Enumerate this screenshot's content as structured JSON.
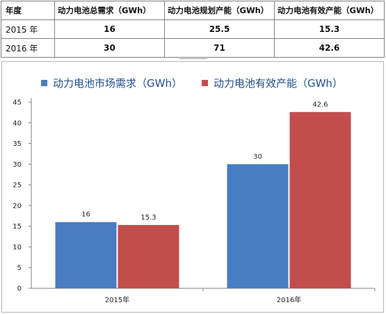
{
  "table": {
    "headers": [
      "年度",
      "动力电池总需求（GWh）",
      "动力电池规划产能（GWh）",
      "动力电池有效产能（GWh）"
    ],
    "rows": [
      [
        "2015 年",
        "16",
        "25.5",
        "15.3"
      ],
      [
        "2016 年",
        "30",
        "71",
        "42.6"
      ]
    ]
  },
  "chart_data": {
    "type": "bar",
    "categories": [
      "2015年",
      "2016年"
    ],
    "series": [
      {
        "name": "动力电池市场需求（GWh）",
        "values": [
          16,
          30
        ],
        "color": "#4a7cc3"
      },
      {
        "name": "动力电池有效产能（GWh）",
        "values": [
          15.3,
          42.6
        ],
        "color": "#c24d4d"
      }
    ],
    "data_labels": [
      [
        "16",
        "30"
      ],
      [
        "15.3",
        "42.6"
      ]
    ],
    "yticks": [
      0,
      5,
      10,
      15,
      20,
      25,
      30,
      35,
      40,
      45
    ],
    "ylim": [
      0,
      45
    ],
    "grid": false,
    "legend_position": "top-left"
  }
}
